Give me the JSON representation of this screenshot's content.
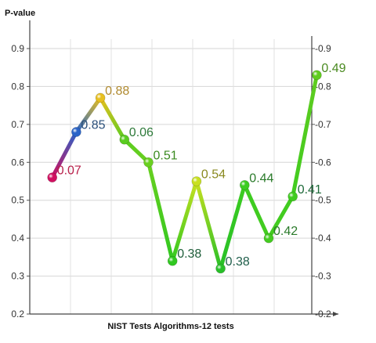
{
  "chart_data": {
    "type": "line",
    "ylabel": "P-value",
    "xlabel": "NIST Tests Algorithms-12 tests",
    "ylim": [
      0.2,
      0.9
    ],
    "yticks": [
      "0.2",
      "0.3",
      "0.4",
      "0.5",
      "0.6",
      "0.7",
      "0.8",
      "0.9"
    ],
    "secondary_y_axis": true,
    "grid": true,
    "points": [
      {
        "x": 1,
        "y": 0.56,
        "label": "0.07",
        "color": "#d01060",
        "label_color": "#b8204a"
      },
      {
        "x": 2,
        "y": 0.68,
        "label": "0.85",
        "color": "#2a64c8",
        "label_color": "#2a4f7a"
      },
      {
        "x": 3,
        "y": 0.77,
        "label": "0.88",
        "color": "#e8c020",
        "label_color": "#b08a30"
      },
      {
        "x": 4,
        "y": 0.66,
        "label": "0.06",
        "color": "#5acc20",
        "label_color": "#2e7a3a"
      },
      {
        "x": 5,
        "y": 0.6,
        "label": "0.51",
        "color": "#6ad020",
        "label_color": "#3a8a20"
      },
      {
        "x": 6,
        "y": 0.34,
        "label": "0.38",
        "color": "#30c820",
        "label_color": "#1f5e3a"
      },
      {
        "x": 7,
        "y": 0.55,
        "label": "0.54",
        "color": "#c8e020",
        "label_color": "#8a8a20"
      },
      {
        "x": 8,
        "y": 0.32,
        "label": "0.38",
        "color": "#28c028",
        "label_color": "#1f5e4a"
      },
      {
        "x": 9,
        "y": 0.54,
        "label": "0.44",
        "color": "#3ccc20",
        "label_color": "#2a7a2a"
      },
      {
        "x": 10,
        "y": 0.4,
        "label": "0.42",
        "color": "#44cc20",
        "label_color": "#2a7a2a"
      },
      {
        "x": 11,
        "y": 0.51,
        "label": "0.41",
        "color": "#40cc20",
        "label_color": "#1f6a3a"
      },
      {
        "x": 12,
        "y": 0.83,
        "label": "0.49",
        "color": "#60cc20",
        "label_color": "#4a8a20"
      }
    ]
  }
}
